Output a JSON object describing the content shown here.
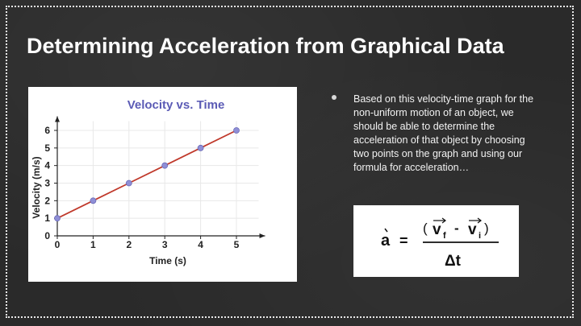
{
  "slide": {
    "title": "Determining Acceleration from Graphical Data",
    "bullet": "Based on this velocity-time graph for the non-uniform motion of an object, we should be able to determine the acceleration of that object by choosing two points on the graph and using our formula for acceleration…"
  },
  "formula": {
    "a": "a",
    "equals": "=",
    "open_paren": "(",
    "vf": "v",
    "vf_sub": "f",
    "minus": "-",
    "vi": "v",
    "vi_sub": "i",
    "close_paren": ")",
    "denominator": "Δt"
  },
  "colors": {
    "background": "#2a2a2a",
    "line": "#c0392b",
    "point": "#8f8fd6",
    "chart_title": "#5b5bb5"
  },
  "chart_data": {
    "type": "line",
    "title": "Velocity vs. Time",
    "xlabel": "Time (s)",
    "ylabel": "Velocity (m/s)",
    "x_ticks": [
      0,
      1,
      2,
      3,
      4,
      5
    ],
    "y_ticks": [
      0,
      1,
      2,
      3,
      4,
      5,
      6
    ],
    "xlim": [
      0,
      5.8
    ],
    "ylim": [
      0,
      6.8
    ],
    "grid": true,
    "series": [
      {
        "x": [
          0,
          1,
          2,
          3,
          4,
          5
        ],
        "y": [
          1,
          2,
          3,
          4,
          5,
          6
        ]
      }
    ]
  }
}
